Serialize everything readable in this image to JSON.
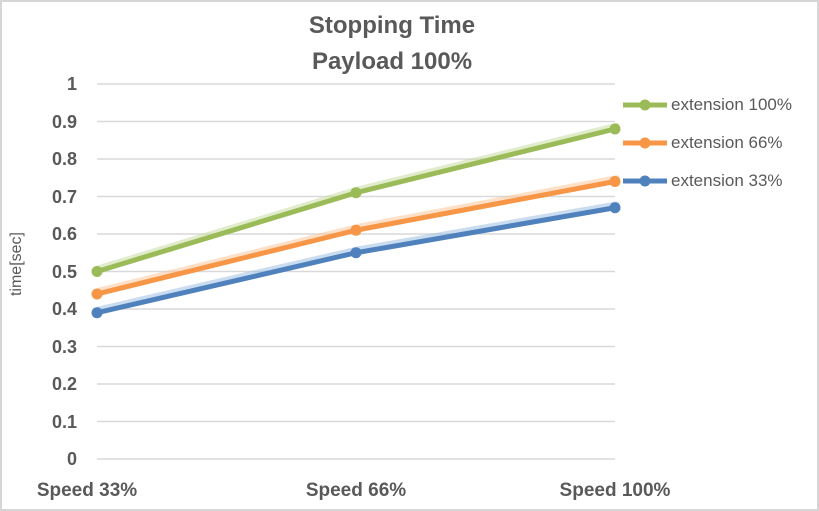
{
  "window": {
    "background": "#FFFFFF",
    "border_color": "#D6D6D6"
  },
  "chart_data": {
    "type": "line",
    "title_lines": [
      "Stopping Time",
      "Payload 100%"
    ],
    "ylabel": "time[sec]",
    "xlabel": "",
    "categories": [
      "Speed 33%",
      "Speed 66%",
      "Speed 100%"
    ],
    "series": [
      {
        "name": "extension 100%",
        "color": "#9BBB59",
        "glow": "#C9DCA2",
        "values": [
          0.5,
          0.71,
          0.88
        ]
      },
      {
        "name": "extension 66%",
        "color": "#F79646",
        "glow": "#FBC699",
        "values": [
          0.44,
          0.61,
          0.74
        ]
      },
      {
        "name": "extension 33%",
        "color": "#4F81BD",
        "glow": "#9FC0E2",
        "values": [
          0.39,
          0.55,
          0.67
        ]
      }
    ],
    "ylim": [
      0,
      1
    ],
    "ytick_step": 0.1,
    "ytick_labels": [
      "0",
      "0.1",
      "0.2",
      "0.3",
      "0.4",
      "0.5",
      "0.6",
      "0.7",
      "0.8",
      "0.9",
      "1"
    ],
    "grid": true,
    "legend_position": "right",
    "marker": "circle",
    "text_color": "#595959",
    "grid_color": "#D9D9D9"
  }
}
